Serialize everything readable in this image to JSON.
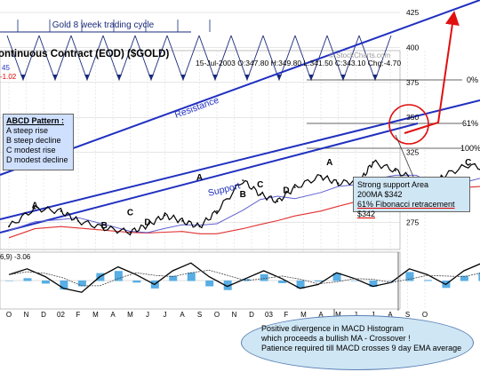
{
  "title_banner": "Gold 8 week trading cycle",
  "contract": "ontinuous Contract (EOD) ($GOLD)",
  "watermark": "© StockCharts.com",
  "quote": "15-Jul-2003 O:347.80 H:349.80 L:341.50 C:343.10 Chg:-4.70",
  "left_fragments": [
    "45",
    "-1.02"
  ],
  "macd_label": "6,9) -3.06",
  "annotations": {
    "resistance": "Resistance",
    "support": "Support",
    "fib_0": "0%",
    "fib_61": "61%",
    "fib_100": "100%"
  },
  "abcd": {
    "heading": "ABCD Pattern :",
    "lines": [
      "A steep rise",
      "B steep decline",
      "C modest rise",
      "D modest decline"
    ]
  },
  "support_box": {
    "line1": "Strong support Area",
    "line2": "200MA $342",
    "line3": "61% Fibonacci retracement $342"
  },
  "macd_note": {
    "line1": "Positive divergence in MACD Histogram",
    "line2": "which proceeds a bullish MA - Crossover !",
    "line3": "Patience required till MACD crosses 9 day EMA average"
  },
  "colors": {
    "price": "#000000",
    "trendline": "#2030c0",
    "ma_short": "#6060d0",
    "ma_long": "#e03030",
    "target_arrow": "#e01010",
    "histogram": "#3ba0e0",
    "cycle": "#1a2a7a"
  },
  "chart_data": [
    {
      "type": "line",
      "name": "price",
      "ylim": [
        255,
        425
      ],
      "y_ticks": [
        425,
        400,
        375,
        350,
        325,
        275
      ],
      "x_ticks": [
        "O",
        "N",
        "D",
        "02",
        "F",
        "M",
        "A",
        "M",
        "J",
        "J",
        "A",
        "S",
        "O",
        "N",
        "D",
        "03",
        "F",
        "M",
        "A",
        "M",
        "J",
        "J",
        "A",
        "S",
        "O"
      ],
      "x": [
        0,
        1.5,
        3,
        4,
        5.5,
        7,
        8,
        9,
        10,
        11,
        12,
        13.5,
        14.5,
        15.5,
        16.5,
        18,
        19,
        20.3,
        21,
        22.3,
        23.5,
        24.5,
        25,
        26.5,
        28,
        29.5,
        31,
        32.5,
        33.5,
        34.5,
        35.5,
        36.5,
        37.5,
        38.3,
        39,
        40,
        40.5,
        41,
        41.5,
        42
      ],
      "values": [
        272,
        285,
        283,
        276,
        271,
        268,
        273,
        280,
        276,
        272,
        283,
        305,
        295,
        290,
        300,
        308,
        303,
        305,
        318,
        312,
        305,
        298,
        308,
        316,
        312,
        322,
        318,
        340,
        348,
        370,
        360,
        338,
        330,
        320,
        322,
        362,
        356,
        353,
        342,
        343
      ],
      "pattern_labels": [
        {
          "label": "A",
          "x": 1.5,
          "y": 285
        },
        {
          "label": "B",
          "x": 5.5,
          "y": 271
        },
        {
          "label": "C",
          "x": 7,
          "y": 280
        },
        {
          "label": "D",
          "x": 8,
          "y": 273
        },
        {
          "label": "A",
          "x": 11,
          "y": 305
        },
        {
          "label": "B",
          "x": 13.5,
          "y": 293
        },
        {
          "label": "C",
          "x": 14.5,
          "y": 300
        },
        {
          "label": "D",
          "x": 16,
          "y": 296
        },
        {
          "label": "A",
          "x": 18.5,
          "y": 316
        },
        {
          "label": "B",
          "x": 22.3,
          "y": 303
        },
        {
          "label": "C",
          "x": 26.5,
          "y": 316
        },
        {
          "label": "D",
          "x": 30,
          "y": 306
        },
        {
          "label": "A",
          "x": 34.5,
          "y": 372
        },
        {
          "label": "B",
          "x": 38.5,
          "y": 318
        },
        {
          "label": "C",
          "x": 40.5,
          "y": 363
        },
        {
          "label": "D",
          "x": 42.5,
          "y": 332
        },
        {
          "label": "A",
          "x": 49,
          "y": 428
        }
      ]
    },
    {
      "type": "area",
      "name": "MACD histogram",
      "x_ticks": [
        "O",
        "N",
        "D",
        "02",
        "F",
        "M",
        "A",
        "M",
        "J",
        "J",
        "A",
        "S",
        "O",
        "N",
        "D",
        "03",
        "F",
        "M",
        "A",
        "M",
        "J",
        "J",
        "A",
        "S",
        "O"
      ],
      "macd": [
        0.3,
        0.6,
        0.2,
        -0.4,
        -0.6,
        0.2,
        0.7,
        0.3,
        -0.2,
        0.5,
        0.9,
        0.2,
        -0.3,
        0.1,
        0.5,
        0.1,
        -0.4,
        -0.2,
        0.4,
        0.1,
        -0.3,
        -0.1,
        0.6,
        0.3,
        -0.2,
        0.5,
        0.9,
        0.6,
        0.2,
        0.8,
        1.0,
        -0.2,
        -0.9,
        -0.7,
        0.2,
        0.8,
        0.5,
        -0.1,
        -0.4,
        -0.3
      ]
    }
  ]
}
